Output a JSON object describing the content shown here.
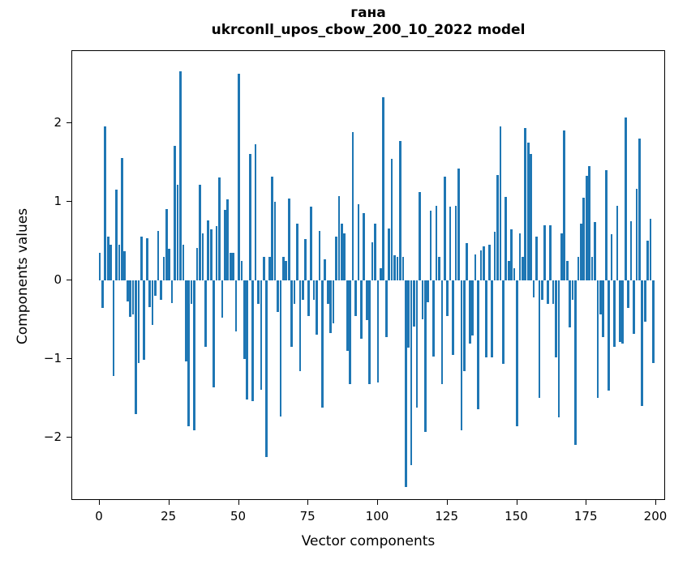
{
  "title": {
    "line1": "гана",
    "line2": "ukrconll_upos_cbow_200_10_2022 model"
  },
  "axis": {
    "xlabel": "Vector components",
    "ylabel": "Components values"
  },
  "chart_data": {
    "type": "bar",
    "title": "гана — ukrconll_upos_cbow_200_10_2022 model",
    "xlabel": "Vector components",
    "ylabel": "Components values",
    "bar_color": "#1f77b4",
    "grid": false,
    "legend_position": "none",
    "xlim": [
      -9.9,
      203.5
    ],
    "ylim": [
      -2.8,
      2.91
    ],
    "x_tick_values": [
      0,
      25,
      50,
      75,
      100,
      125,
      150,
      175,
      200
    ],
    "x_tick_labels": [
      "0",
      "25",
      "50",
      "75",
      "100",
      "125",
      "150",
      "175",
      "200"
    ],
    "y_tick_values": [
      -2,
      -1,
      0,
      1,
      2
    ],
    "y_tick_labels": [
      "−2",
      "−1",
      "0",
      "1",
      "2"
    ],
    "x": "vector component index 0..199",
    "values": [
      0.35,
      -0.35,
      1.95,
      0.55,
      0.45,
      -1.22,
      1.15,
      0.45,
      1.55,
      0.37,
      -0.27,
      -0.46,
      -0.43,
      -1.7,
      -1.05,
      0.55,
      -1.01,
      0.53,
      -0.34,
      -0.57,
      -0.2,
      0.63,
      -0.25,
      0.3,
      0.9,
      0.4,
      -0.29,
      1.71,
      1.21,
      2.65,
      0.45,
      -1.03,
      -1.85,
      -0.3,
      -1.9,
      0.41,
      1.21,
      0.6,
      -0.85,
      0.76,
      0.65,
      -1.36,
      0.69,
      1.3,
      -0.48,
      0.89,
      1.03,
      0.35,
      0.35,
      -0.65,
      2.62,
      0.25,
      -1.0,
      -1.51,
      1.6,
      -1.53,
      1.73,
      -0.3,
      -1.39,
      0.3,
      -2.24,
      0.3,
      1.32,
      1.0,
      -0.4,
      -1.73,
      0.3,
      0.25,
      1.04,
      -0.85,
      -0.3,
      0.72,
      -1.15,
      -0.25,
      0.52,
      -0.45,
      0.93,
      -0.25,
      -0.69,
      0.63,
      -1.62,
      0.27,
      -0.3,
      -0.67,
      -0.55,
      0.55,
      1.07,
      0.72,
      0.6,
      -0.9,
      -1.32,
      1.88,
      -0.45,
      0.97,
      -0.74,
      0.85,
      -0.51,
      -1.32,
      0.48,
      0.72,
      -1.3,
      0.15,
      2.32,
      -0.72,
      0.66,
      1.54,
      0.32,
      0.3,
      1.77,
      0.3,
      -2.62,
      -0.86,
      -2.35,
      -0.59,
      -1.62,
      1.12,
      -0.5,
      -1.93,
      -0.28,
      0.88,
      -0.97,
      0.95,
      0.3,
      -1.32,
      1.32,
      -0.45,
      0.93,
      -0.95,
      0.94,
      1.42,
      -1.9,
      -1.15,
      0.47,
      -0.8,
      -0.7,
      0.33,
      -1.64,
      0.38,
      0.43,
      -0.98,
      0.45,
      -0.98,
      0.62,
      1.34,
      1.95,
      -1.06,
      1.06,
      0.25,
      0.65,
      0.15,
      -1.85,
      0.6,
      0.3,
      1.93,
      1.75,
      1.6,
      -0.22,
      0.55,
      -1.49,
      -0.25,
      0.7,
      -0.3,
      0.7,
      -0.3,
      -0.98,
      -1.74,
      0.6,
      1.9,
      0.25,
      -0.6,
      -0.25,
      -2.09,
      0.3,
      0.72,
      1.05,
      1.33,
      1.45,
      0.3,
      0.74,
      -1.49,
      -0.43,
      -0.72,
      1.4,
      -1.4,
      0.58,
      -0.85,
      0.95,
      -0.78,
      -0.8,
      2.07,
      -0.35,
      0.75,
      -0.68,
      1.16,
      1.8,
      -1.6,
      -0.53,
      0.5,
      0.78,
      -1.05
    ]
  }
}
